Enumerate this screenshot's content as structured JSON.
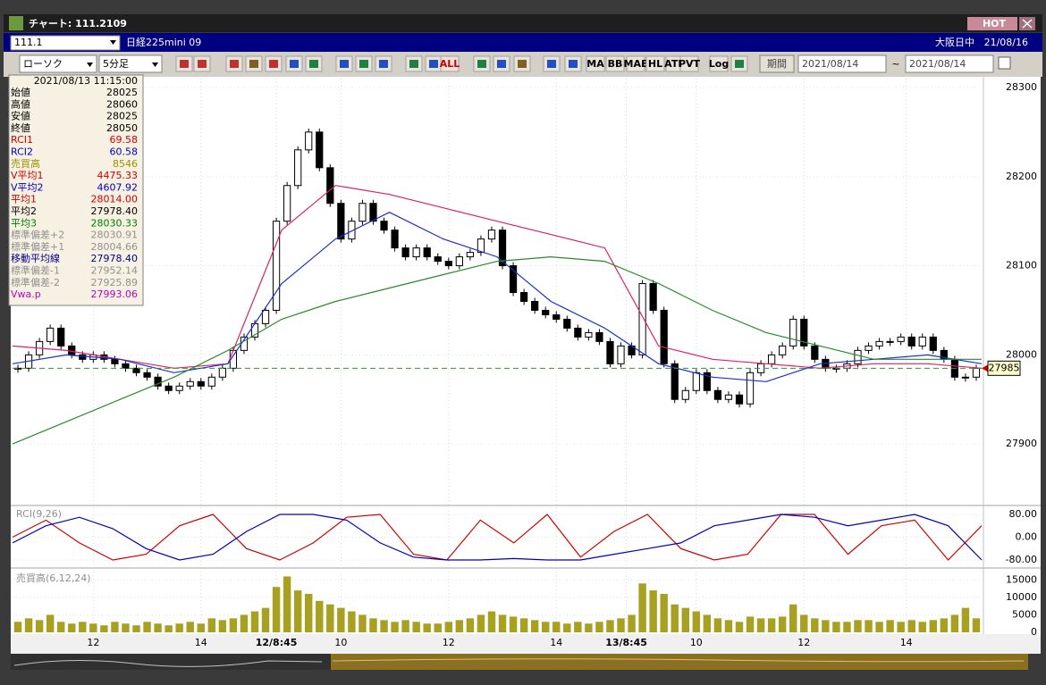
{
  "window": {
    "title": "チャート: 111.2109",
    "hot": "HOT"
  },
  "toolbar": {
    "symbol": "111.1",
    "name": "日経225mini 09",
    "session": "大阪日中",
    "date": "21/08/16",
    "chart_kind": "ローソク",
    "interval": "5分足",
    "buttons": [
      "ALL",
      "MA",
      "BB",
      "MAE",
      "HL",
      "ATR",
      "PVT",
      "Log"
    ],
    "period": "期間",
    "from": "2021/08/14",
    "tilde": "~",
    "to": "2021/08/14"
  },
  "info": {
    "datetime": "2021/08/13 11:15:00",
    "rows": [
      {
        "label": "始値",
        "value": "28025",
        "color": "#000000"
      },
      {
        "label": "高値",
        "value": "28060",
        "color": "#000000"
      },
      {
        "label": "安値",
        "value": "28025",
        "color": "#000000"
      },
      {
        "label": "終値",
        "value": "28050",
        "color": "#000000"
      },
      {
        "label": "RCI1",
        "value": "69.58",
        "color": "#d00000"
      },
      {
        "label": "RCI2",
        "value": "60.58",
        "color": "#0000c0"
      },
      {
        "label": "売買高",
        "value": "8546",
        "color": "#a09000"
      },
      {
        "label": "V平均1",
        "value": "4475.33",
        "color": "#d00000"
      },
      {
        "label": "V平均2",
        "value": "4607.92",
        "color": "#0000c0"
      },
      {
        "label": "平均1",
        "value": "28014.00",
        "color": "#d00000"
      },
      {
        "label": "平均2",
        "value": "27978.40",
        "color": "#000000"
      },
      {
        "label": "平均3",
        "value": "28030.33",
        "color": "#008000"
      },
      {
        "label": "標準偏差+2",
        "value": "28030.91",
        "color": "#909090"
      },
      {
        "label": "標準偏差+1",
        "value": "28004.66",
        "color": "#909090"
      },
      {
        "label": "移動平均線",
        "value": "27978.40",
        "color": "#000090"
      },
      {
        "label": "標準偏差-1",
        "value": "27952.14",
        "color": "#909090"
      },
      {
        "label": "標準偏差-2",
        "value": "27925.89",
        "color": "#909090"
      },
      {
        "label": "Vwa.p",
        "value": "27993.06",
        "color": "#c000c0"
      }
    ]
  },
  "chart_data": [
    {
      "type": "candlestick",
      "values": [
        27985,
        28000,
        28015,
        28030,
        28010,
        28000,
        27995,
        28000,
        27995,
        27990,
        27985,
        27980,
        27975,
        27965,
        27960,
        27965,
        27970,
        27965,
        27975,
        27985,
        28005,
        28020,
        28035,
        28050,
        28150,
        28190,
        28230,
        28250,
        28210,
        28170,
        28130,
        28150,
        28170,
        28150,
        28140,
        28120,
        28110,
        28120,
        28110,
        28105,
        28100,
        28110,
        28115,
        28130,
        28140,
        28100,
        28070,
        28060,
        28050,
        28045,
        28040,
        28030,
        28020,
        28025,
        28015,
        27990,
        28010,
        28000,
        28080,
        28050,
        27990,
        27950,
        27960,
        27980,
        27960,
        27950,
        27955,
        27945,
        27980,
        27990,
        28000,
        28010,
        28040,
        28010,
        27995,
        27985,
        27985,
        27990,
        28005,
        28010,
        28015,
        28015,
        28020,
        28010,
        28020,
        28005,
        27995,
        27975,
        27975,
        27985
      ],
      "series": [
        {
          "color": "#e0206a",
          "values": [
            28010,
            28005,
            27995,
            27985,
            27990,
            28140,
            28190,
            28180,
            28165,
            28150,
            28135,
            28120,
            28010,
            27995,
            27990,
            27985,
            27990,
            27990,
            27985
          ]
        },
        {
          "color": "#1a2fd0",
          "values": [
            27990,
            28000,
            27995,
            27980,
            27990,
            28080,
            28130,
            28160,
            28130,
            28110,
            28060,
            28030,
            27990,
            27975,
            27970,
            27990,
            27995,
            28000,
            27990
          ]
        },
        {
          "color": "#2a8a2a",
          "values": [
            27900,
            27925,
            27950,
            27975,
            28005,
            28040,
            28060,
            28075,
            28090,
            28105,
            28110,
            28105,
            28080,
            28050,
            28025,
            28010,
            27995,
            27995,
            27995
          ]
        }
      ],
      "last_price": 27985,
      "ylim": [
        27832,
        28310
      ],
      "yticks": [
        28300,
        28200,
        28100,
        28000,
        27900
      ],
      "xlim": [
        0,
        90
      ],
      "xticks": [
        {
          "value": 7.5,
          "label": "12"
        },
        {
          "value": 17.5,
          "label": "14"
        },
        {
          "value": 24.5,
          "label": "12/8:45"
        },
        {
          "value": 30.5,
          "label": "10"
        },
        {
          "value": 40.5,
          "label": "12"
        },
        {
          "value": 50.5,
          "label": "14"
        },
        {
          "value": 57,
          "label": "13/8:45"
        },
        {
          "value": 63.5,
          "label": "10"
        },
        {
          "value": 73.5,
          "label": "12"
        },
        {
          "value": 83,
          "label": "14"
        }
      ],
      "grid": true
    },
    {
      "type": "line",
      "title": "RCI(9,26)",
      "series": [
        {
          "color": "#d00000",
          "values": [
            0,
            60,
            -20,
            -80,
            -60,
            40,
            80,
            -40,
            -80,
            -20,
            70,
            80,
            -60,
            -80,
            60,
            -20,
            80,
            -70,
            20,
            80,
            -40,
            -80,
            -60,
            80,
            80,
            -60,
            40,
            60,
            -80,
            40
          ]
        },
        {
          "color": "#0000c0",
          "values": [
            -20,
            40,
            70,
            30,
            -40,
            -80,
            -60,
            20,
            80,
            80,
            60,
            -20,
            -70,
            -80,
            -80,
            -75,
            -80,
            -80,
            -60,
            -40,
            -20,
            40,
            60,
            80,
            70,
            40,
            60,
            80,
            40,
            -80
          ]
        }
      ],
      "ylim": [
        -105,
        105
      ],
      "yticks": [
        {
          "value": 80,
          "label": "80.00"
        },
        {
          "value": 0,
          "label": "0.00"
        },
        {
          "value": -80,
          "label": "-80.00"
        }
      ]
    },
    {
      "type": "bar",
      "title": "売買高(6,12,24)",
      "color": "#a8a020",
      "values": [
        3000,
        4000,
        3500,
        5000,
        3000,
        2500,
        3000,
        2500,
        2000,
        3000,
        2500,
        2000,
        3000,
        2500,
        2000,
        2500,
        3000,
        2500,
        4000,
        3500,
        4000,
        5000,
        6000,
        7000,
        13000,
        16000,
        12000,
        11000,
        9000,
        8000,
        7000,
        6000,
        5000,
        4000,
        3500,
        3000,
        3500,
        3000,
        2500,
        2500,
        3000,
        3500,
        4000,
        5000,
        6000,
        5000,
        4500,
        4000,
        3500,
        3000,
        3000,
        2500,
        3000,
        2500,
        3000,
        3500,
        4000,
        5000,
        14000,
        12000,
        11000,
        8000,
        7000,
        6000,
        5000,
        4000,
        3500,
        3000,
        4500,
        4000,
        4000,
        4500,
        8000,
        5000,
        4000,
        3500,
        3000,
        3000,
        3500,
        3500,
        3000,
        3500,
        3000,
        3500,
        3000,
        3500,
        4000,
        5000,
        7000,
        4000
      ],
      "ylim": [
        0,
        17400
      ],
      "yticks": [
        15000,
        10000,
        5000,
        0
      ]
    }
  ]
}
